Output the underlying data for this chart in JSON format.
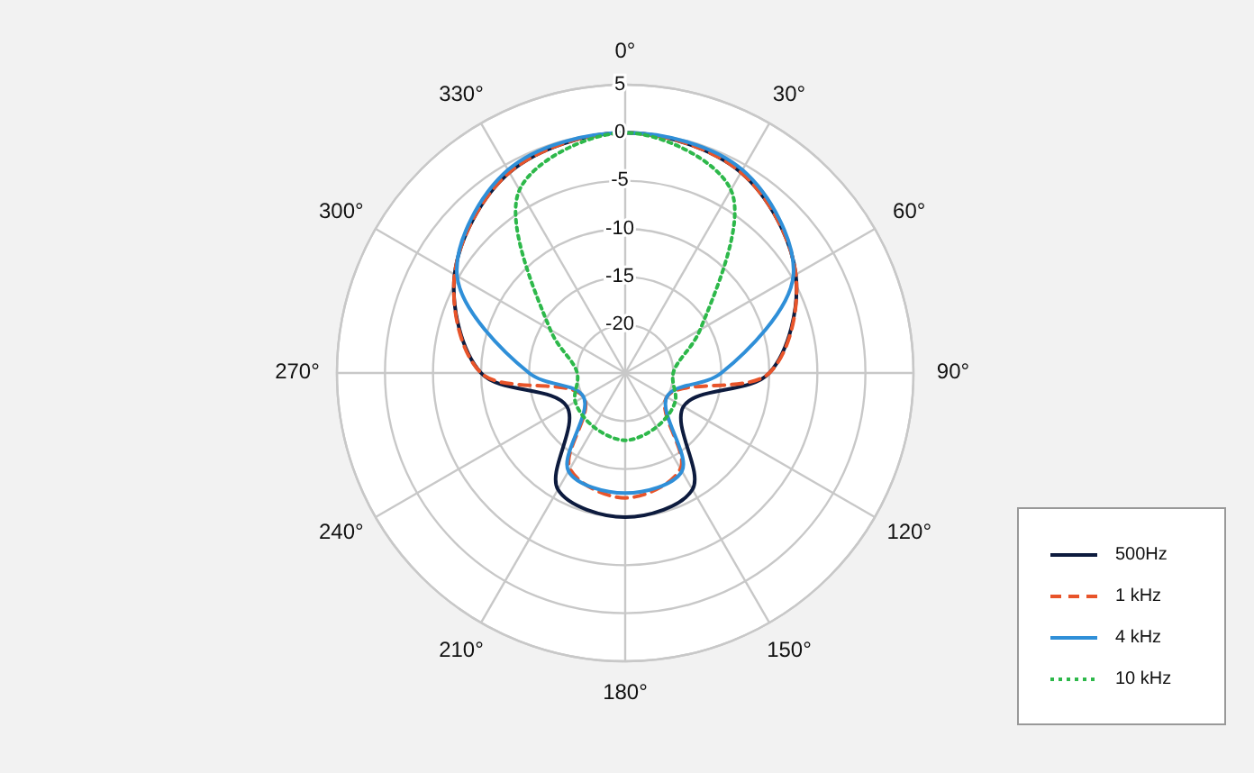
{
  "chart_data": {
    "type": "radar",
    "categories": [
      "0°",
      "30°",
      "60°",
      "90°",
      "120°",
      "150°",
      "180°",
      "210°",
      "240°",
      "270°",
      "300°",
      "330°"
    ],
    "ylim": [
      -25,
      5
    ],
    "yticks": [
      -20,
      -15,
      -10,
      -5,
      0,
      5
    ],
    "grid": true,
    "legend": "bottom right",
    "series": [
      {
        "name": "500Hz",
        "color": "#0d1b3e",
        "line_style": "solid",
        "values": [
          0,
          -0.9,
          -4.5,
          -10,
          -18,
          -11,
          -10,
          -11,
          -18,
          -10,
          -4.5,
          -0.9
        ]
      },
      {
        "name": "1 kHz",
        "color": "#e8542a",
        "line_style": "dashed",
        "values": [
          0,
          -0.9,
          -4.5,
          -10,
          -20,
          -13.5,
          -12,
          -13.5,
          -20,
          -10,
          -4.5,
          -0.9
        ]
      },
      {
        "name": "4 kHz",
        "color": "#2f8fd8",
        "line_style": "solid",
        "values": [
          0,
          -0.6,
          -4.8,
          -15,
          -20,
          -13.2,
          -12.5,
          -13.2,
          -20,
          -15,
          -4.8,
          -0.6
        ]
      },
      {
        "name": "10 kHz",
        "color": "#2db84a",
        "line_style": "dotted",
        "values": [
          0,
          -3,
          -16,
          -20,
          -19,
          -18.5,
          -18,
          -18.5,
          -19,
          -20,
          -16,
          -3
        ]
      }
    ]
  }
}
